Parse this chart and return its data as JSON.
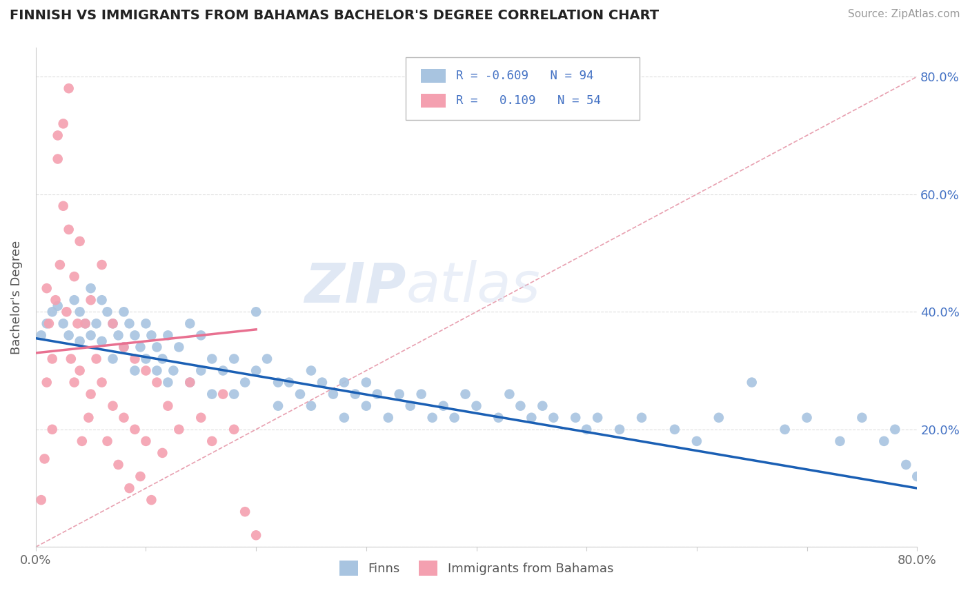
{
  "title": "FINNISH VS IMMIGRANTS FROM BAHAMAS BACHELOR'S DEGREE CORRELATION CHART",
  "source": "Source: ZipAtlas.com",
  "ylabel": "Bachelor's Degree",
  "xlim": [
    0.0,
    0.8
  ],
  "ylim": [
    0.0,
    0.85
  ],
  "watermark": "ZIPatlas",
  "finns_color": "#a8c4e0",
  "bahamas_color": "#f4a0b0",
  "finns_line_color": "#1a5fb4",
  "bahamas_line_color": "#e87090",
  "diagonal_color": "#e8a0b0",
  "background_color": "#ffffff",
  "finns_R": -0.609,
  "finns_N": 94,
  "bahamas_R": 0.109,
  "bahamas_N": 54,
  "finns_x": [
    0.005,
    0.01,
    0.015,
    0.02,
    0.025,
    0.03,
    0.035,
    0.04,
    0.04,
    0.045,
    0.05,
    0.05,
    0.055,
    0.06,
    0.06,
    0.065,
    0.07,
    0.07,
    0.075,
    0.08,
    0.08,
    0.085,
    0.09,
    0.09,
    0.095,
    0.1,
    0.1,
    0.105,
    0.11,
    0.11,
    0.115,
    0.12,
    0.12,
    0.125,
    0.13,
    0.14,
    0.14,
    0.15,
    0.15,
    0.16,
    0.16,
    0.17,
    0.18,
    0.18,
    0.19,
    0.2,
    0.2,
    0.21,
    0.22,
    0.22,
    0.23,
    0.24,
    0.25,
    0.25,
    0.26,
    0.27,
    0.28,
    0.28,
    0.29,
    0.3,
    0.3,
    0.31,
    0.32,
    0.33,
    0.34,
    0.35,
    0.36,
    0.37,
    0.38,
    0.39,
    0.4,
    0.42,
    0.43,
    0.44,
    0.45,
    0.46,
    0.47,
    0.49,
    0.5,
    0.51,
    0.53,
    0.55,
    0.58,
    0.6,
    0.62,
    0.65,
    0.68,
    0.7,
    0.73,
    0.75,
    0.77,
    0.78,
    0.79,
    0.8
  ],
  "finns_y": [
    0.36,
    0.38,
    0.4,
    0.41,
    0.38,
    0.36,
    0.42,
    0.4,
    0.35,
    0.38,
    0.44,
    0.36,
    0.38,
    0.42,
    0.35,
    0.4,
    0.38,
    0.32,
    0.36,
    0.4,
    0.34,
    0.38,
    0.36,
    0.3,
    0.34,
    0.38,
    0.32,
    0.36,
    0.34,
    0.3,
    0.32,
    0.36,
    0.28,
    0.3,
    0.34,
    0.38,
    0.28,
    0.36,
    0.3,
    0.32,
    0.26,
    0.3,
    0.32,
    0.26,
    0.28,
    0.4,
    0.3,
    0.32,
    0.28,
    0.24,
    0.28,
    0.26,
    0.3,
    0.24,
    0.28,
    0.26,
    0.28,
    0.22,
    0.26,
    0.28,
    0.24,
    0.26,
    0.22,
    0.26,
    0.24,
    0.26,
    0.22,
    0.24,
    0.22,
    0.26,
    0.24,
    0.22,
    0.26,
    0.24,
    0.22,
    0.24,
    0.22,
    0.22,
    0.2,
    0.22,
    0.2,
    0.22,
    0.2,
    0.18,
    0.22,
    0.28,
    0.2,
    0.22,
    0.18,
    0.22,
    0.18,
    0.2,
    0.14,
    0.12
  ],
  "bahamas_x": [
    0.005,
    0.008,
    0.01,
    0.01,
    0.012,
    0.015,
    0.015,
    0.018,
    0.02,
    0.02,
    0.022,
    0.025,
    0.025,
    0.028,
    0.03,
    0.03,
    0.032,
    0.035,
    0.035,
    0.038,
    0.04,
    0.04,
    0.042,
    0.045,
    0.048,
    0.05,
    0.05,
    0.055,
    0.06,
    0.06,
    0.065,
    0.07,
    0.07,
    0.075,
    0.08,
    0.08,
    0.085,
    0.09,
    0.09,
    0.095,
    0.1,
    0.1,
    0.105,
    0.11,
    0.115,
    0.12,
    0.13,
    0.14,
    0.15,
    0.16,
    0.17,
    0.18,
    0.19,
    0.2
  ],
  "bahamas_y": [
    0.08,
    0.15,
    0.44,
    0.28,
    0.38,
    0.32,
    0.2,
    0.42,
    0.7,
    0.66,
    0.48,
    0.72,
    0.58,
    0.4,
    0.78,
    0.54,
    0.32,
    0.46,
    0.28,
    0.38,
    0.52,
    0.3,
    0.18,
    0.38,
    0.22,
    0.42,
    0.26,
    0.32,
    0.48,
    0.28,
    0.18,
    0.38,
    0.24,
    0.14,
    0.34,
    0.22,
    0.1,
    0.32,
    0.2,
    0.12,
    0.3,
    0.18,
    0.08,
    0.28,
    0.16,
    0.24,
    0.2,
    0.28,
    0.22,
    0.18,
    0.26,
    0.2,
    0.06,
    0.02
  ]
}
